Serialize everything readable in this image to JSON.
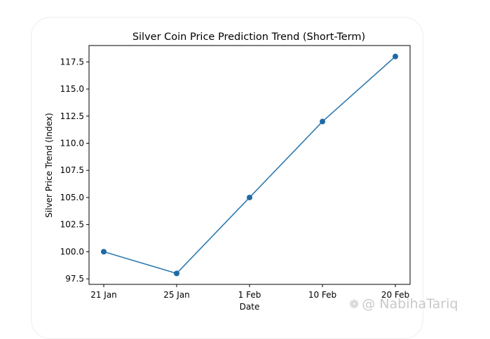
{
  "chart_data": {
    "type": "line",
    "title": "Silver Coin Price Prediction Trend (Short-Term)",
    "xlabel": "Date",
    "ylabel": "Silver Price Trend (Index)",
    "categories": [
      "21 Jan",
      "25 Jan",
      "1 Feb",
      "10 Feb",
      "20 Feb"
    ],
    "series": [
      {
        "values": [
          100.0,
          98.0,
          105.0,
          112.0,
          118.0
        ]
      }
    ],
    "ylim": [
      96.99,
      119.01
    ],
    "yticks": [
      "97.5",
      "100.0",
      "102.5",
      "105.0",
      "107.5",
      "110.0",
      "112.5",
      "115.0",
      "117.5"
    ],
    "ytick_values": [
      97.5,
      100.0,
      102.5,
      105.0,
      107.5,
      110.0,
      112.5,
      115.0,
      117.5
    ],
    "grid": false,
    "line_color": "#2e7ab0",
    "marker_color": "#1f6aa5",
    "marker": "circle"
  },
  "watermark": {
    "text": "@ NabihaTariq",
    "icon": "binance-logo-icon"
  }
}
